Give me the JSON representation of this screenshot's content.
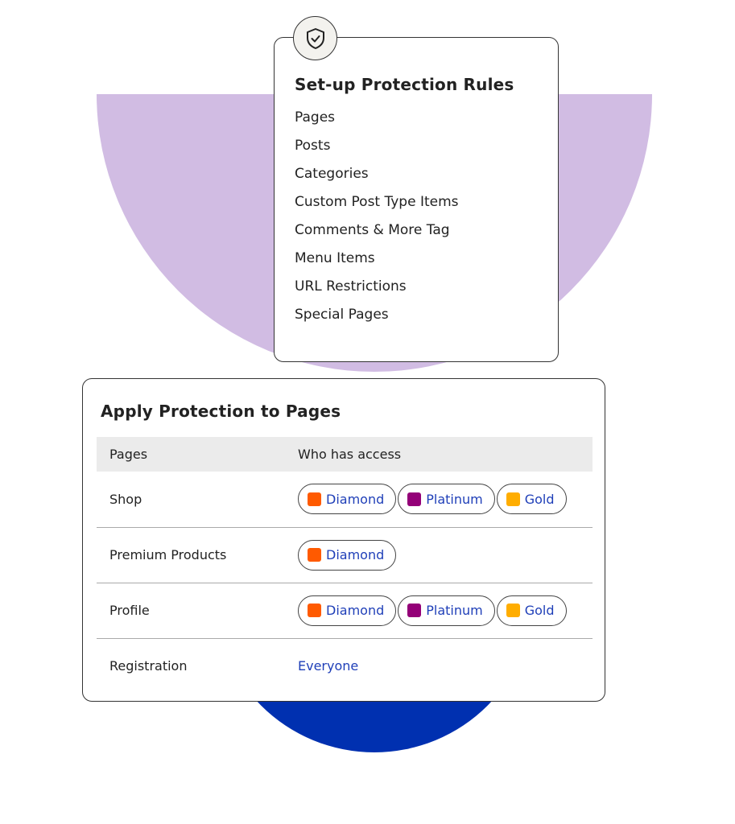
{
  "rules_card": {
    "title": "Set-up Protection Rules",
    "icon": "shield-check-icon",
    "items": [
      "Pages",
      "Posts",
      "Categories",
      "Custom Post Type Items",
      "Comments & More Tag",
      "Menu Items",
      "URL Restrictions",
      "Special Pages"
    ]
  },
  "apply_card": {
    "title": "Apply Protection to Pages",
    "headers": [
      "Pages",
      "Who has access"
    ],
    "rows": [
      {
        "page": "Shop",
        "access": [
          {
            "label": "Diamond",
            "color": "#ff5a00"
          },
          {
            "label": "Platinum",
            "color": "#940078"
          },
          {
            "label": "Gold",
            "color": "#ffad00"
          }
        ]
      },
      {
        "page": "Premium Products",
        "access": [
          {
            "label": "Diamond",
            "color": "#ff5a00"
          }
        ]
      },
      {
        "page": "Profile",
        "access": [
          {
            "label": "Diamond",
            "color": "#ff5a00"
          },
          {
            "label": "Platinum",
            "color": "#940078"
          },
          {
            "label": "Gold",
            "color": "#ffad00"
          }
        ]
      },
      {
        "page": "Registration",
        "access_text": "Everyone"
      }
    ]
  },
  "colors": {
    "purple_bg": "#d1bce3",
    "blue_bg": "#0030b0",
    "link": "#1f3fb8"
  }
}
